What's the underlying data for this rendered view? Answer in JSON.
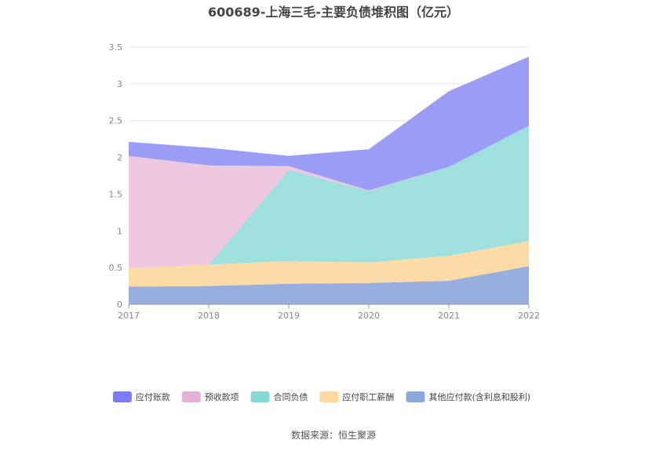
{
  "chart_data": {
    "type": "area",
    "stacked": true,
    "title": "600689-上海三毛-主要负债堆积图（亿元）",
    "source": "数据来源：恒生聚源",
    "categories": [
      "2017",
      "2018",
      "2019",
      "2020",
      "2021",
      "2022"
    ],
    "y_ticks": [
      "0",
      "0.5",
      "1",
      "1.5",
      "2",
      "2.5",
      "3",
      "3.5"
    ],
    "ylim": [
      0,
      3.5
    ],
    "grid": true,
    "legend_position": "bottom",
    "series": [
      {
        "name": "其他应付款(含利息和股利)",
        "color": "#98aedf",
        "values": [
          0.24,
          0.25,
          0.28,
          0.29,
          0.32,
          0.52
        ]
      },
      {
        "name": "应付职工薪酬",
        "color": "#fddba6",
        "values": [
          0.25,
          0.29,
          0.31,
          0.28,
          0.34,
          0.34
        ]
      },
      {
        "name": "合同负债",
        "color": "#9ee0de",
        "values": [
          0.0,
          0.0,
          1.24,
          0.97,
          1.21,
          1.57
        ]
      },
      {
        "name": "预收款项",
        "color": "#eec8e1",
        "values": [
          1.53,
          1.35,
          0.05,
          0.01,
          0.0,
          0.0
        ]
      },
      {
        "name": "应付账款",
        "color": "#9a9cf6",
        "values": [
          0.19,
          0.24,
          0.14,
          0.56,
          1.03,
          0.94
        ]
      }
    ],
    "legend": [
      {
        "name": "应付账款",
        "color": "#7b7cf4"
      },
      {
        "name": "预收款项",
        "color": "#e4b1d6"
      },
      {
        "name": "合同负债",
        "color": "#86d8d6"
      },
      {
        "name": "应付职工薪酬",
        "color": "#fcd79f"
      },
      {
        "name": "其他应付款(含利息和股利)",
        "color": "#8fa8dc"
      }
    ]
  }
}
